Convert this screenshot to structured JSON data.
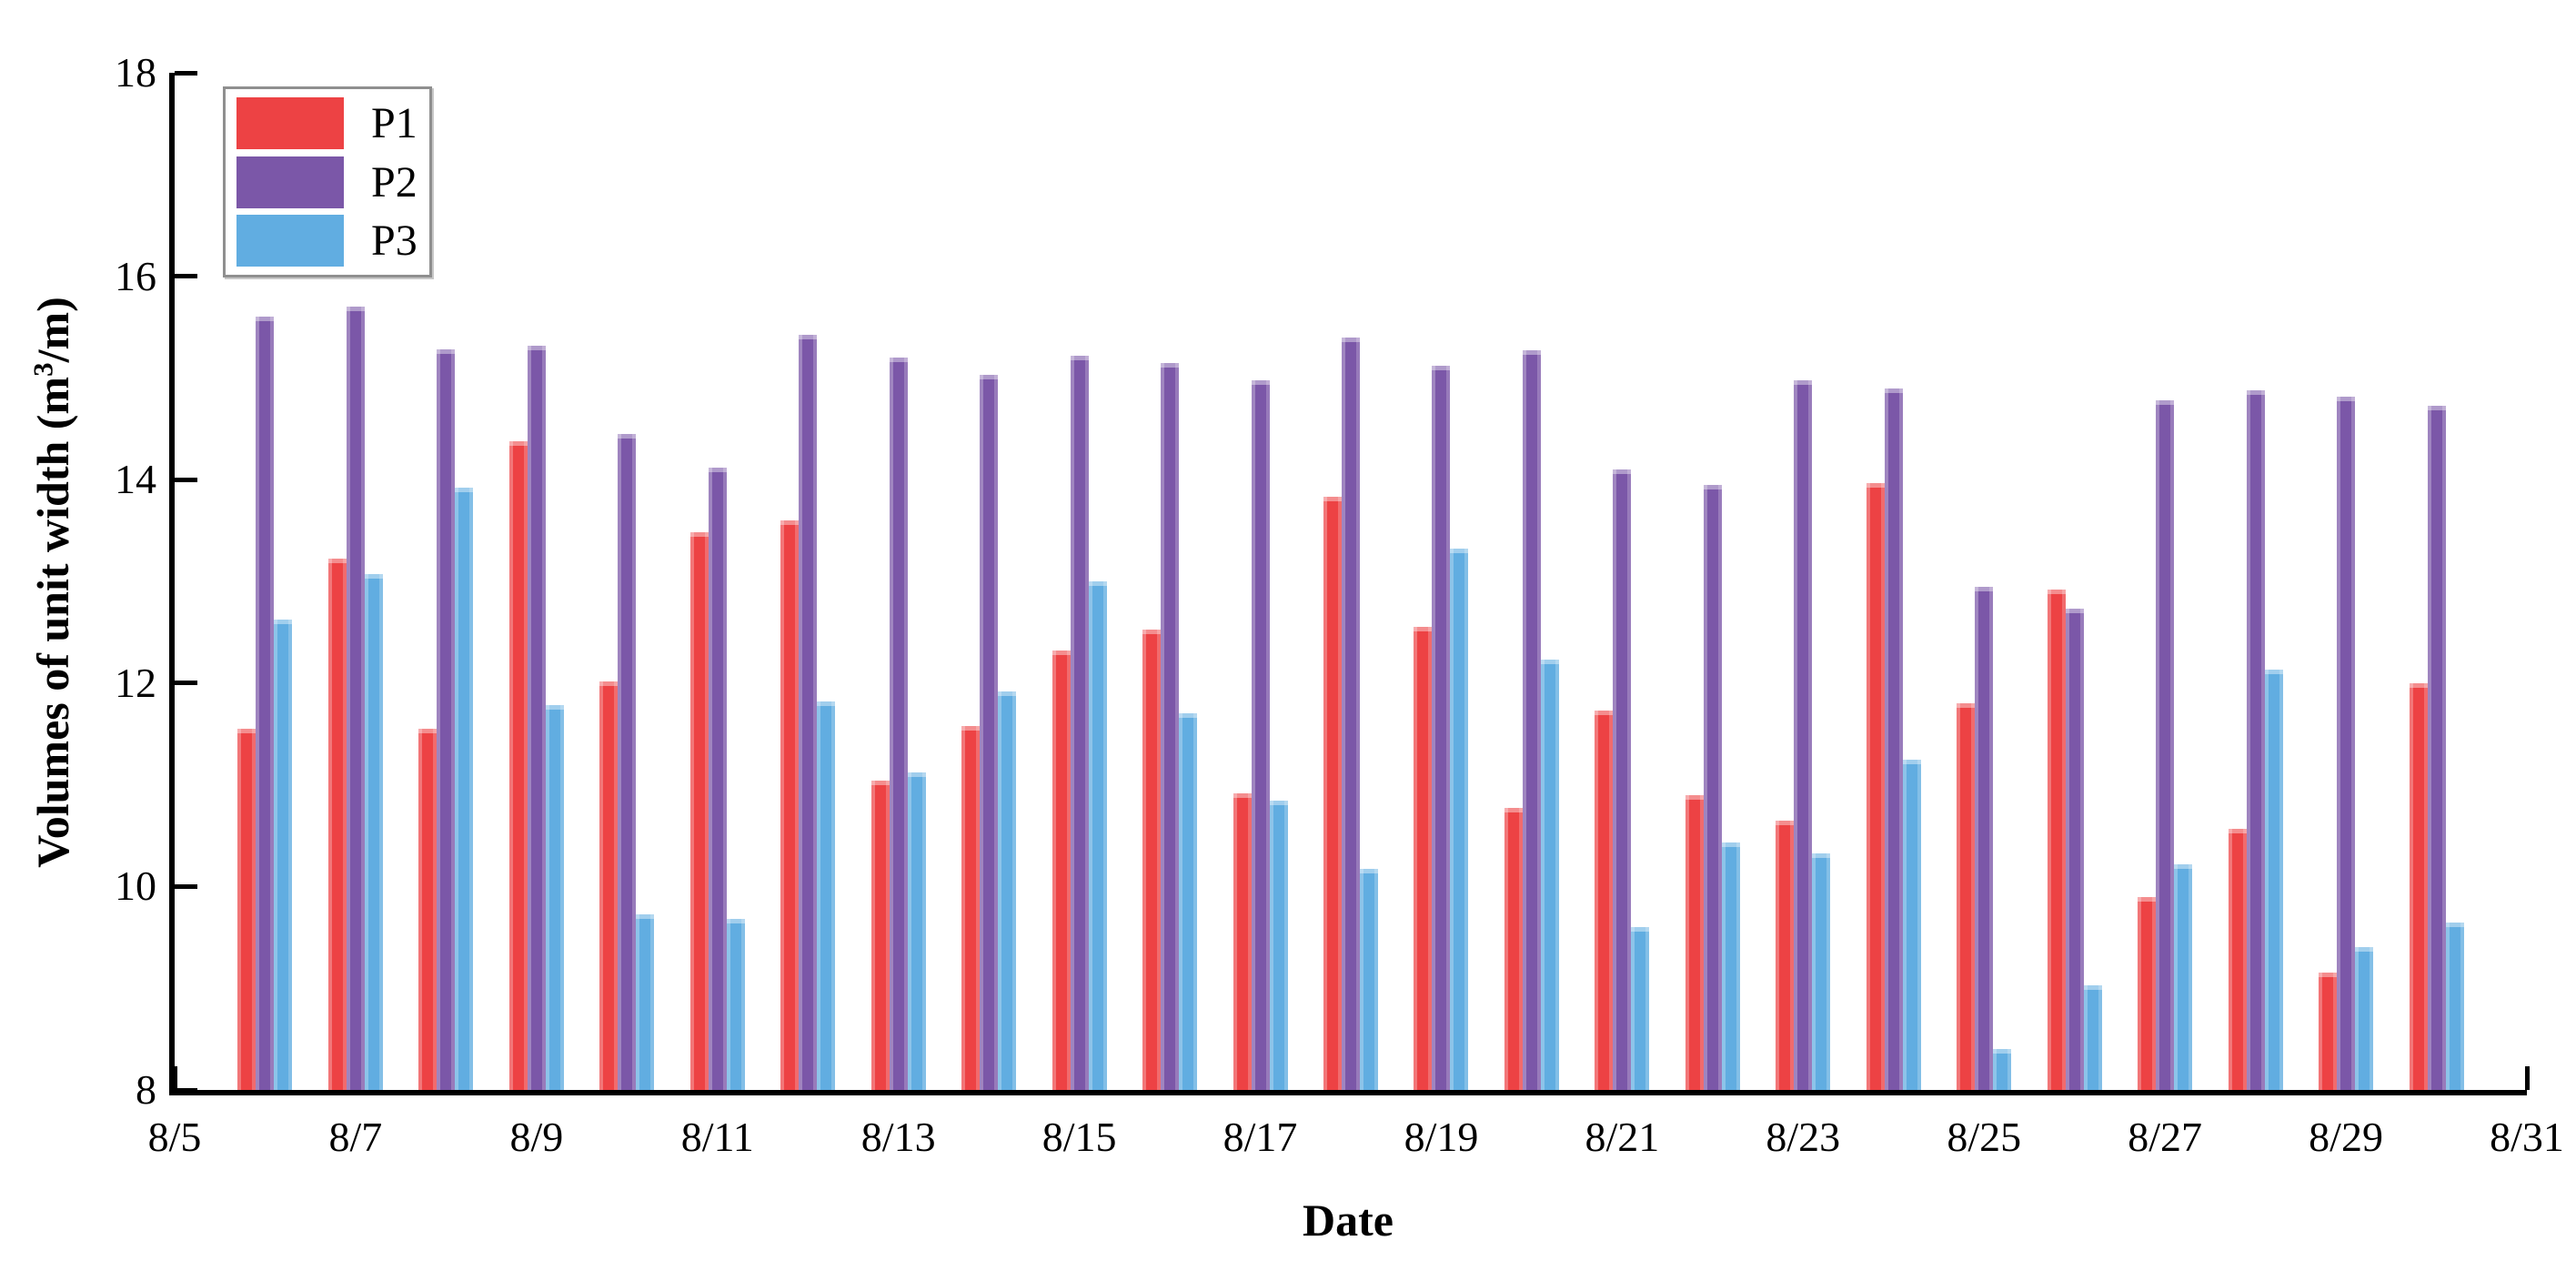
{
  "chart_data": {
    "type": "bar",
    "title": "",
    "xlabel": "Date",
    "ylabel": "Volumes of unit width (m³/m)",
    "ylabel_parts": {
      "prefix": "Volumes of unit width (m",
      "sup": "3",
      "suffix": "/m)"
    },
    "ylim": [
      8,
      18
    ],
    "yticks": [
      8,
      10,
      12,
      14,
      16,
      18
    ],
    "ytick_labels": [
      "8",
      "10",
      "12",
      "14",
      "16",
      "18"
    ],
    "x_axis_days": 26,
    "x_major_tick_labels": [
      "8/5",
      "8/7",
      "8/9",
      "8/11",
      "8/13",
      "8/15",
      "8/17",
      "8/19",
      "8/21",
      "8/23",
      "8/25",
      "8/27",
      "8/29",
      "8/31"
    ],
    "grid": false,
    "legend_position": "top-left",
    "categories": [
      "8/6",
      "8/7",
      "8/8",
      "8/9",
      "8/10",
      "8/11",
      "8/12",
      "8/13",
      "8/14",
      "8/15",
      "8/16",
      "8/17",
      "8/18",
      "8/19",
      "8/20",
      "8/21",
      "8/22",
      "8/23",
      "8/24",
      "8/25",
      "8/26",
      "8/27",
      "8/28",
      "8/29",
      "8/30"
    ],
    "series": [
      {
        "name": "P1",
        "color": "#ED4244",
        "values": [
          11.55,
          13.22,
          11.55,
          14.38,
          12.02,
          13.48,
          13.6,
          11.04,
          11.58,
          12.32,
          12.53,
          10.92,
          13.83,
          12.55,
          10.77,
          11.73,
          10.9,
          10.65,
          13.97,
          11.8,
          12.92,
          9.9,
          10.57,
          9.15,
          12.0
        ]
      },
      {
        "name": "P2",
        "color": "#7B57A8",
        "values": [
          15.6,
          15.7,
          15.28,
          15.32,
          14.45,
          14.12,
          15.42,
          15.2,
          15.03,
          15.22,
          15.15,
          14.98,
          15.4,
          15.12,
          15.27,
          14.1,
          13.95,
          14.98,
          14.9,
          12.95,
          12.73,
          14.78,
          14.88,
          14.82,
          14.73
        ]
      },
      {
        "name": "P3",
        "color": "#61ADE1",
        "values": [
          12.62,
          13.07,
          13.92,
          11.78,
          9.73,
          9.68,
          11.82,
          11.12,
          11.92,
          13.0,
          11.7,
          10.84,
          10.17,
          13.32,
          12.23,
          9.6,
          10.43,
          10.33,
          11.25,
          8.4,
          9.03,
          10.22,
          12.13,
          9.4,
          9.65
        ]
      }
    ],
    "colors": {
      "axis": "#000000",
      "background": "#ffffff",
      "legend_border": "#8f8f8f"
    }
  }
}
